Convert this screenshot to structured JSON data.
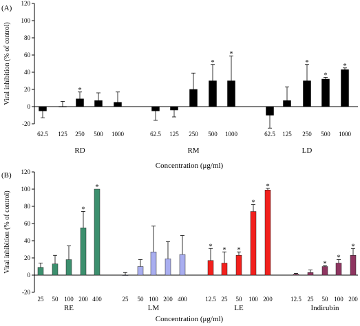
{
  "chart_data": [
    {
      "type": "bar",
      "panel_label": "(A)",
      "ylabel": "Viral inhibition (% of control)",
      "xlabel": "Concentration (μg/ml)",
      "ylim": [
        -20,
        120
      ],
      "yticks": [
        -20,
        0,
        20,
        40,
        60,
        80,
        100,
        120
      ],
      "grid": false,
      "groups": [
        {
          "name": "RD",
          "color": "#000000",
          "categories": [
            "62.5",
            "125",
            "250",
            "500",
            "1000"
          ],
          "values": [
            -5,
            0,
            9,
            7,
            5
          ],
          "errors": [
            8,
            6,
            8,
            9,
            12
          ],
          "significant": [
            false,
            false,
            true,
            false,
            false
          ]
        },
        {
          "name": "RM",
          "color": "#000000",
          "categories": [
            "62.5",
            "125",
            "250",
            "500",
            "1000"
          ],
          "values": [
            -5,
            -4,
            20,
            30,
            30
          ],
          "errors": [
            11,
            8,
            19,
            19,
            29
          ],
          "significant": [
            false,
            false,
            false,
            true,
            true
          ]
        },
        {
          "name": "LD",
          "color": "#000000",
          "categories": [
            "62.5",
            "125",
            "250",
            "500",
            "1000"
          ],
          "values": [
            -10,
            7,
            30,
            32,
            43
          ],
          "errors": [
            15,
            16,
            19,
            2,
            2
          ],
          "significant": [
            false,
            false,
            true,
            true,
            true
          ]
        }
      ]
    },
    {
      "type": "bar",
      "panel_label": "(B)",
      "ylabel": "Viral inhibition (% of control)",
      "xlabel": "Concentration (μg/ml)",
      "ylim": [
        -20,
        120
      ],
      "yticks": [
        -20,
        0,
        20,
        40,
        60,
        80,
        100,
        120
      ],
      "grid": false,
      "groups": [
        {
          "name": "RE",
          "color": "#3c8f6e",
          "categories": [
            "25",
            "50",
            "100",
            "200",
            "400"
          ],
          "values": [
            9,
            13,
            18,
            55,
            100
          ],
          "errors": [
            5,
            10,
            16,
            19,
            0
          ],
          "significant": [
            false,
            false,
            false,
            true,
            true
          ]
        },
        {
          "name": "LM",
          "color": "#a9aef0",
          "categories": [
            "25",
            "50",
            "100",
            "200",
            "400"
          ],
          "values": [
            0,
            10,
            27,
            19,
            24
          ],
          "errors": [
            3,
            8,
            30,
            20,
            22
          ],
          "significant": [
            false,
            false,
            false,
            false,
            false
          ]
        },
        {
          "name": "LE",
          "color": "#f2201d",
          "categories": [
            "12.5",
            "25",
            "50",
            "100",
            "200"
          ],
          "values": [
            17,
            14,
            23,
            74,
            99
          ],
          "errors": [
            14,
            13,
            4,
            8,
            2
          ],
          "significant": [
            true,
            true,
            true,
            true,
            true
          ]
        },
        {
          "name": "Indirubin",
          "color": "#8e3560",
          "categories": [
            "12.5",
            "25",
            "50",
            "100",
            "200"
          ],
          "values": [
            1,
            3,
            10,
            14,
            23
          ],
          "errors": [
            1,
            3,
            1,
            4,
            8
          ],
          "significant": [
            false,
            false,
            true,
            true,
            true
          ]
        }
      ]
    }
  ]
}
